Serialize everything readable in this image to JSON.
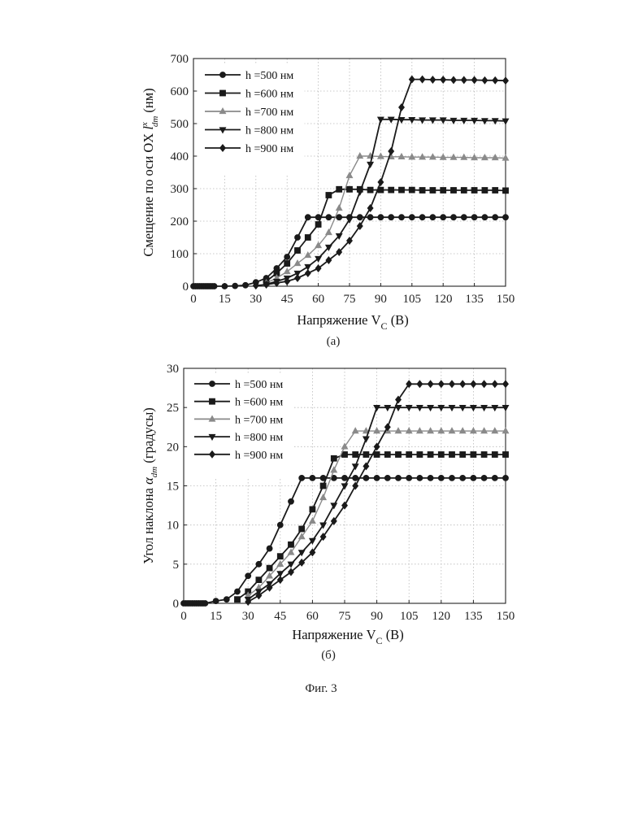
{
  "figure_caption": "Фиг. 3",
  "chart_data": [
    {
      "type": "line",
      "panel_label": "(а)",
      "xlabel": {
        "main": "Напряжение V",
        "sub": "C",
        "tail": " (В)"
      },
      "ylabel": {
        "main": "Смещение по оси OX  ",
        "sym": "l",
        "sup": "x",
        "sub": "dm",
        "tail": " (нм)"
      },
      "xlim": [
        0,
        150
      ],
      "ylim": [
        0,
        700
      ],
      "xticks": [
        0,
        15,
        30,
        45,
        60,
        75,
        90,
        105,
        120,
        135,
        150
      ],
      "yticks": [
        0,
        100,
        200,
        300,
        400,
        500,
        600,
        700
      ],
      "grid": true,
      "legend_position": "top-left",
      "series": [
        {
          "name": "h =500 нм",
          "marker": "circle",
          "color": "#1a1a1a",
          "x": [
            0,
            1,
            2,
            3,
            4,
            5,
            6,
            7,
            8,
            9,
            10,
            15,
            20,
            25,
            30,
            35,
            40,
            45,
            50,
            55,
            60,
            65,
            70,
            75,
            80,
            85,
            90,
            95,
            100,
            105,
            110,
            115,
            120,
            125,
            130,
            135,
            140,
            145,
            150
          ],
          "y": [
            0,
            0,
            0,
            0,
            0,
            0,
            0,
            0,
            0,
            0,
            0,
            0,
            1,
            3,
            12,
            25,
            55,
            90,
            150,
            212,
            212,
            212,
            212,
            212,
            212,
            212,
            212,
            212,
            212,
            212,
            212,
            212,
            212,
            212,
            212,
            212,
            212,
            212,
            212
          ]
        },
        {
          "name": "h =600 нм",
          "marker": "square",
          "color": "#1a1a1a",
          "x": [
            35,
            40,
            45,
            50,
            55,
            60,
            65,
            70,
            75,
            80,
            85,
            90,
            95,
            100,
            105,
            110,
            115,
            120,
            125,
            130,
            135,
            140,
            145,
            150
          ],
          "y": [
            15,
            40,
            70,
            110,
            150,
            190,
            280,
            298,
            298,
            298,
            296,
            296,
            296,
            296,
            296,
            295,
            295,
            295,
            295,
            295,
            295,
            295,
            295,
            294
          ]
        },
        {
          "name": "h =700 нм",
          "marker": "triangle-up",
          "color": "#8a8a8a",
          "x": [
            35,
            40,
            45,
            50,
            55,
            60,
            65,
            70,
            75,
            80,
            85,
            90,
            95,
            100,
            105,
            110,
            115,
            120,
            125,
            130,
            135,
            140,
            145,
            150
          ],
          "y": [
            10,
            25,
            45,
            70,
            95,
            125,
            165,
            240,
            340,
            400,
            400,
            399,
            398,
            398,
            397,
            397,
            397,
            396,
            396,
            396,
            395,
            395,
            395,
            394
          ]
        },
        {
          "name": "h =800 нм",
          "marker": "triangle-down",
          "color": "#1a1a1a",
          "x": [
            35,
            40,
            45,
            50,
            55,
            60,
            65,
            70,
            75,
            80,
            85,
            90,
            95,
            100,
            105,
            110,
            115,
            120,
            125,
            130,
            135,
            140,
            145,
            150
          ],
          "y": [
            6,
            15,
            25,
            40,
            60,
            85,
            120,
            155,
            205,
            290,
            375,
            513,
            513,
            512,
            512,
            511,
            511,
            511,
            510,
            510,
            510,
            509,
            509,
            508
          ]
        },
        {
          "name": "h =900 нм",
          "marker": "diamond",
          "color": "#1a1a1a",
          "x": [
            30,
            35,
            40,
            45,
            50,
            55,
            60,
            65,
            70,
            75,
            80,
            85,
            90,
            95,
            100,
            105,
            110,
            115,
            120,
            125,
            130,
            135,
            140,
            145,
            150
          ],
          "y": [
            2,
            5,
            10,
            15,
            25,
            40,
            55,
            80,
            105,
            140,
            185,
            240,
            320,
            415,
            550,
            636,
            636,
            635,
            635,
            634,
            634,
            634,
            633,
            633,
            632
          ]
        }
      ]
    },
    {
      "type": "line",
      "panel_label": "(б)",
      "xlabel": {
        "main": "Напряжение V",
        "sub": "C",
        "tail": " (В)"
      },
      "ylabel": {
        "main": "Угол наклона  ",
        "sym": "α",
        "sup": "",
        "sub": "dm",
        "tail": " (градусы)"
      },
      "xlim": [
        0,
        150
      ],
      "ylim": [
        0,
        30
      ],
      "xticks": [
        0,
        15,
        30,
        45,
        60,
        75,
        90,
        105,
        120,
        135,
        150
      ],
      "yticks": [
        0,
        5,
        10,
        15,
        20,
        25,
        30
      ],
      "grid": true,
      "legend_position": "top-left",
      "series": [
        {
          "name": "h =500 нм",
          "marker": "circle",
          "color": "#1a1a1a",
          "x": [
            0,
            1,
            2,
            3,
            4,
            5,
            6,
            7,
            8,
            9,
            10,
            15,
            20,
            25,
            30,
            35,
            40,
            45,
            50,
            55,
            60,
            65,
            70,
            75,
            80,
            85,
            90,
            95,
            100,
            105,
            110,
            115,
            120,
            125,
            130,
            135,
            140,
            145,
            150
          ],
          "y": [
            0,
            0,
            0,
            0,
            0,
            0,
            0,
            0,
            0,
            0,
            0,
            0.3,
            0.5,
            1.5,
            3.5,
            5,
            7,
            10,
            13,
            16,
            16,
            16,
            16,
            16,
            16,
            16,
            16,
            16,
            16,
            16,
            16,
            16,
            16,
            16,
            16,
            16,
            16,
            16,
            16
          ]
        },
        {
          "name": "h =600 нм",
          "marker": "square",
          "color": "#1a1a1a",
          "x": [
            25,
            30,
            35,
            40,
            45,
            50,
            55,
            60,
            65,
            70,
            75,
            80,
            85,
            90,
            95,
            100,
            105,
            110,
            115,
            120,
            125,
            130,
            135,
            140,
            145,
            150
          ],
          "y": [
            0.5,
            1.5,
            3,
            4.5,
            6,
            7.5,
            9.5,
            12,
            15,
            18.5,
            19,
            19,
            19,
            19,
            19,
            19,
            19,
            19,
            19,
            19,
            19,
            19,
            19,
            19,
            19,
            19
          ]
        },
        {
          "name": "h =700 нм",
          "marker": "triangle-up",
          "color": "#8a8a8a",
          "x": [
            30,
            35,
            40,
            45,
            50,
            55,
            60,
            65,
            70,
            75,
            80,
            85,
            90,
            95,
            100,
            105,
            110,
            115,
            120,
            125,
            130,
            135,
            140,
            145,
            150
          ],
          "y": [
            1,
            2,
            3.5,
            5,
            6.5,
            8.5,
            10.5,
            13.5,
            17,
            20,
            22,
            22,
            22,
            22,
            22,
            22,
            22,
            22,
            22,
            22,
            22,
            22,
            22,
            22,
            22
          ]
        },
        {
          "name": "h =800 нм",
          "marker": "triangle-down",
          "color": "#1a1a1a",
          "x": [
            30,
            35,
            40,
            45,
            50,
            55,
            60,
            65,
            70,
            75,
            80,
            85,
            90,
            95,
            100,
            105,
            110,
            115,
            120,
            125,
            130,
            135,
            140,
            145,
            150
          ],
          "y": [
            0.5,
            1.5,
            2.5,
            3.8,
            5,
            6.5,
            8,
            10,
            12.5,
            15,
            17.5,
            21,
            25,
            25,
            25,
            25,
            25,
            25,
            25,
            25,
            25,
            25,
            25,
            25,
            25
          ]
        },
        {
          "name": "h =900 нм",
          "marker": "diamond",
          "color": "#1a1a1a",
          "x": [
            30,
            35,
            40,
            45,
            50,
            55,
            60,
            65,
            70,
            75,
            80,
            85,
            90,
            95,
            100,
            105,
            110,
            115,
            120,
            125,
            130,
            135,
            140,
            145,
            150
          ],
          "y": [
            0.2,
            1,
            2,
            3,
            4,
            5.2,
            6.5,
            8.5,
            10.5,
            12.5,
            15,
            17.5,
            20,
            22.5,
            26,
            28,
            28,
            28,
            28,
            28,
            28,
            28,
            28,
            28,
            28
          ]
        }
      ]
    }
  ]
}
